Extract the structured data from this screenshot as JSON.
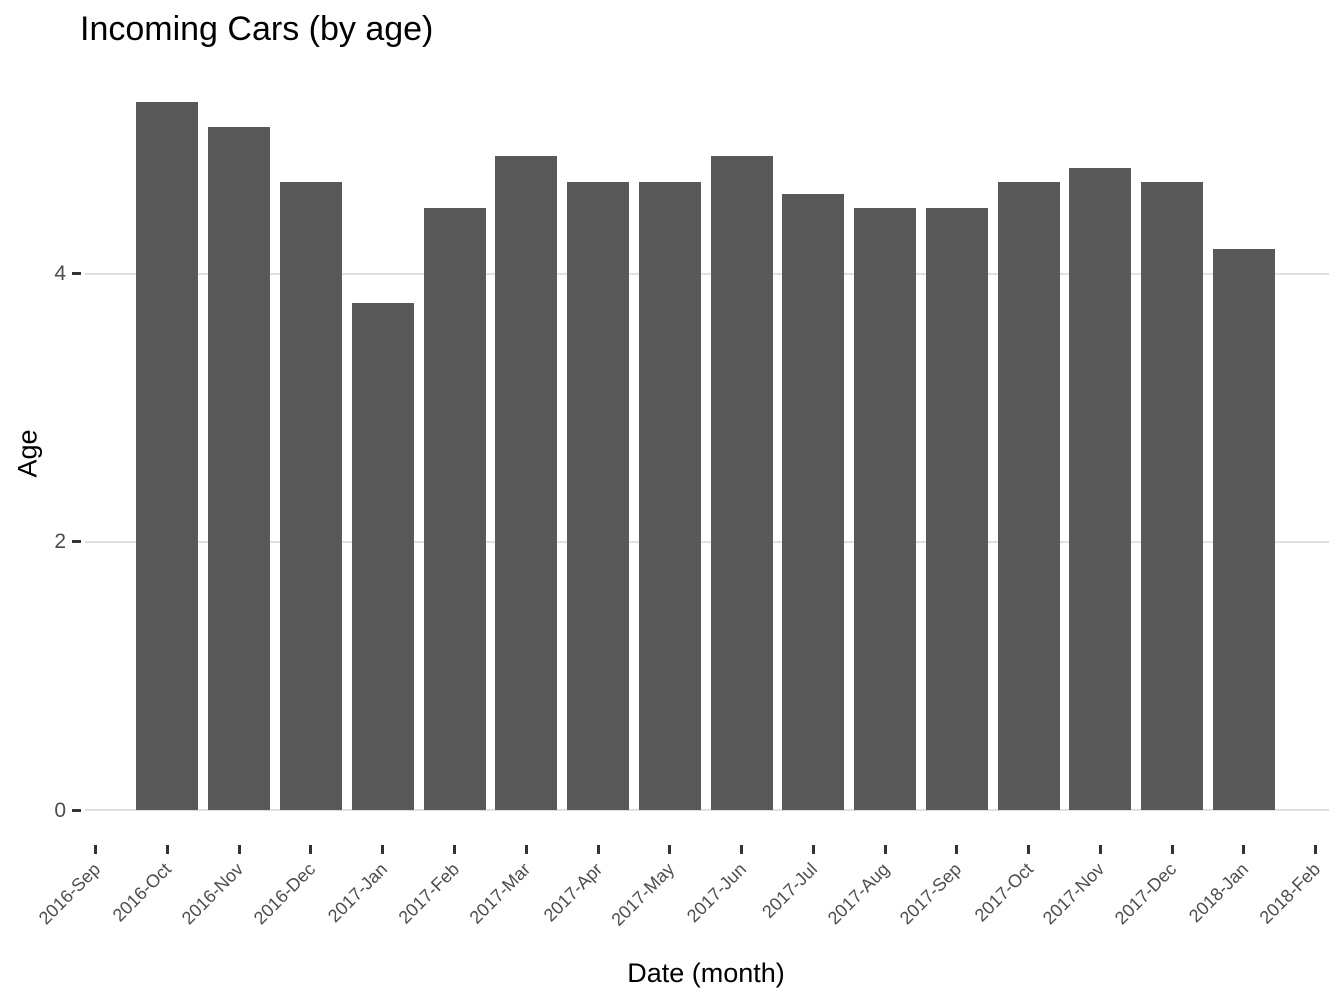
{
  "chart_data": {
    "type": "bar",
    "title": "Incoming Cars (by age)",
    "xlabel": "Date (month)",
    "ylabel": "Age",
    "categories": [
      "2016-Sep",
      "2016-Oct",
      "2016-Nov",
      "2016-Dec",
      "2017-Jan",
      "2017-Feb",
      "2017-Mar",
      "2017-Apr",
      "2017-May",
      "2017-Jun",
      "2017-Jul",
      "2017-Aug",
      "2017-Sep",
      "2017-Oct",
      "2017-Nov",
      "2017-Dec",
      "2018-Jan",
      "2018-Feb"
    ],
    "values": [
      null,
      5.28,
      5.09,
      4.68,
      3.78,
      4.49,
      4.88,
      4.68,
      4.68,
      4.88,
      4.59,
      4.49,
      4.49,
      4.68,
      4.79,
      4.68,
      4.18,
      null
    ],
    "yticks": [
      0,
      2,
      4
    ],
    "ytick_labels": [
      "0",
      "2",
      "4"
    ],
    "ylim": [
      0,
      5.54
    ],
    "x_tick_rotation": 45,
    "grid": "horizontal-major-only",
    "legend": "none",
    "colors": {
      "bar": "#595959",
      "gridline": "#e0e0e0",
      "tick_mark": "#333333",
      "tick_label": "#4d4d4d",
      "title_text": "#000000"
    }
  }
}
